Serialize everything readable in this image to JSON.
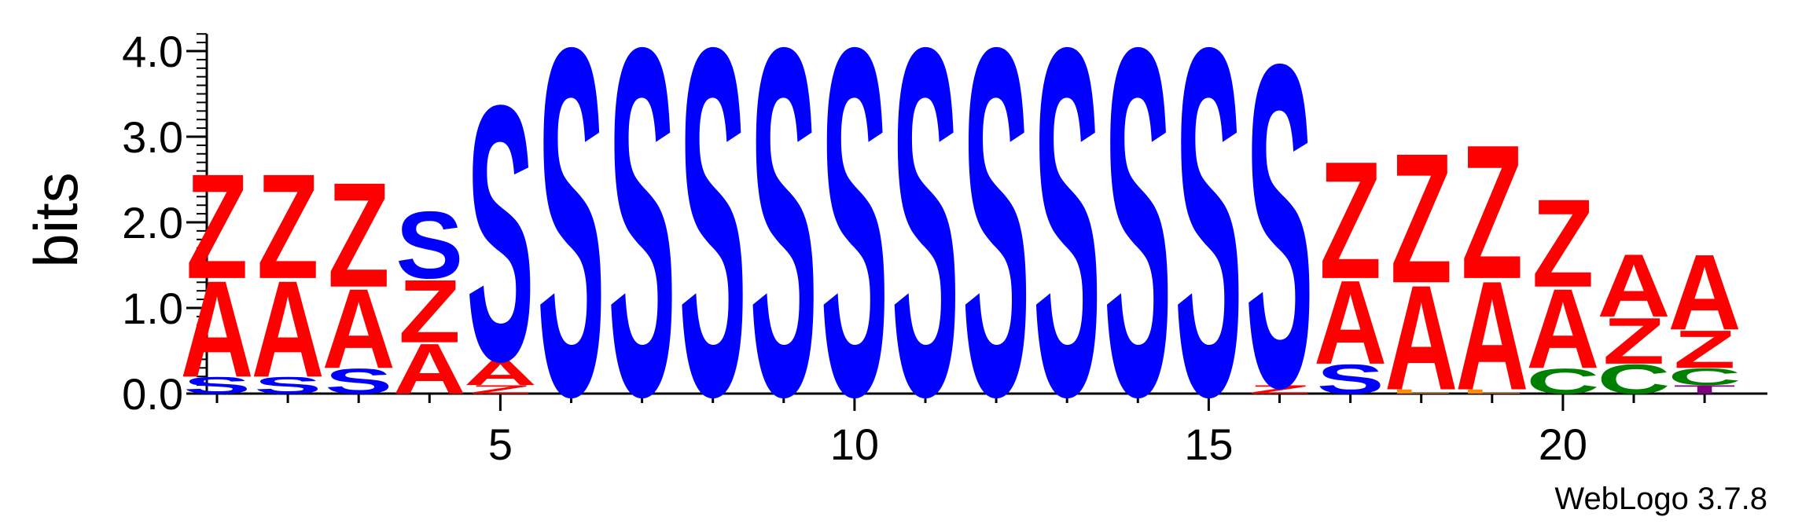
{
  "chart_data": {
    "type": "sequence-logo",
    "ylabel": "bits",
    "ylim": [
      0,
      4.2
    ],
    "yticks": [
      "0.0",
      "1.0",
      "2.0",
      "3.0",
      "4.0"
    ],
    "xticks": [
      5,
      10,
      15,
      20
    ],
    "positions": [
      1,
      2,
      3,
      4,
      5,
      6,
      7,
      8,
      9,
      10,
      11,
      12,
      13,
      14,
      15,
      16,
      17,
      18,
      19,
      20,
      21,
      22
    ],
    "colors": {
      "S": "#0000ff",
      "Z": "#ff0000",
      "A": "#ff0000",
      "C": "#008000",
      "T": "#800080",
      "L": "#ff8c00"
    },
    "columns": [
      [
        {
          "l": "S",
          "h": 0.2
        },
        {
          "l": "A",
          "h": 1.15
        },
        {
          "l": "Z",
          "h": 1.25
        }
      ],
      [
        {
          "l": "S",
          "h": 0.2
        },
        {
          "l": "A",
          "h": 1.15
        },
        {
          "l": "Z",
          "h": 1.25
        }
      ],
      [
        {
          "l": "S",
          "h": 0.3
        },
        {
          "l": "A",
          "h": 0.95
        },
        {
          "l": "Z",
          "h": 1.25
        }
      ],
      [
        {
          "l": "A",
          "h": 0.6
        },
        {
          "l": "Z",
          "h": 0.75
        },
        {
          "l": "S",
          "h": 0.8
        }
      ],
      [
        {
          "l": "Z",
          "h": 0.1
        },
        {
          "l": "A",
          "h": 0.3
        },
        {
          "l": "S",
          "h": 3.05
        }
      ],
      [
        {
          "l": "S",
          "h": 4.15
        }
      ],
      [
        {
          "l": "S",
          "h": 4.15
        }
      ],
      [
        {
          "l": "S",
          "h": 4.15
        }
      ],
      [
        {
          "l": "S",
          "h": 4.15
        }
      ],
      [
        {
          "l": "S",
          "h": 4.15
        }
      ],
      [
        {
          "l": "S",
          "h": 4.15
        }
      ],
      [
        {
          "l": "S",
          "h": 4.15
        }
      ],
      [
        {
          "l": "S",
          "h": 4.15
        }
      ],
      [
        {
          "l": "S",
          "h": 4.15
        }
      ],
      [
        {
          "l": "S",
          "h": 4.15
        }
      ],
      [
        {
          "l": "Z",
          "h": 0.1
        },
        {
          "l": "S",
          "h": 3.85
        }
      ],
      [
        {
          "l": "S",
          "h": 0.35
        },
        {
          "l": "A",
          "h": 1.0
        },
        {
          "l": "Z",
          "h": 1.4
        }
      ],
      [
        {
          "l": "L",
          "h": 0.05
        },
        {
          "l": "A",
          "h": 1.25
        },
        {
          "l": "Z",
          "h": 1.55
        }
      ],
      [
        {
          "l": "L",
          "h": 0.05
        },
        {
          "l": "A",
          "h": 1.3
        },
        {
          "l": "Z",
          "h": 1.6
        }
      ],
      [
        {
          "l": "C",
          "h": 0.3
        },
        {
          "l": "A",
          "h": 0.95
        },
        {
          "l": "Z",
          "h": 1.05
        }
      ],
      [
        {
          "l": "C",
          "h": 0.35
        },
        {
          "l": "Z",
          "h": 0.55
        },
        {
          "l": "A",
          "h": 0.75
        }
      ],
      [
        {
          "l": "T",
          "h": 0.1
        },
        {
          "l": "C",
          "h": 0.2
        },
        {
          "l": "Z",
          "h": 0.45
        },
        {
          "l": "A",
          "h": 0.9
        }
      ]
    ]
  },
  "footer": {
    "credit": "WebLogo 3.7.8"
  }
}
